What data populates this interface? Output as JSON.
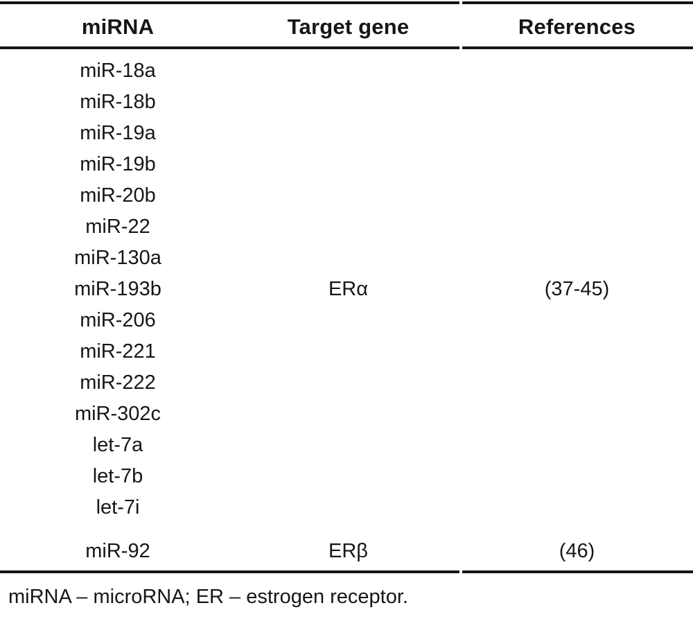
{
  "table": {
    "columns": {
      "mirna": "miRNA",
      "target_gene": "Target gene",
      "references": "References"
    },
    "groups": [
      {
        "mirnas": [
          "miR-18a",
          "miR-18b",
          "miR-19a",
          "miR-19b",
          "miR-20b",
          "miR-22",
          "miR-130a",
          "miR-193b",
          "miR-206",
          "miR-221",
          "miR-222",
          "miR-302c",
          "let-7a",
          "let-7b",
          "let-7i"
        ],
        "target_gene": "ERα",
        "references": "(37-45)"
      },
      {
        "mirnas": [
          "miR-92"
        ],
        "target_gene": "ERβ",
        "references": "(46)"
      }
    ],
    "footnote": "miRNA – microRNA; ER – estrogen receptor.",
    "colors": {
      "text": "#161616",
      "rule": "#141414",
      "background": "#ffffff"
    }
  }
}
